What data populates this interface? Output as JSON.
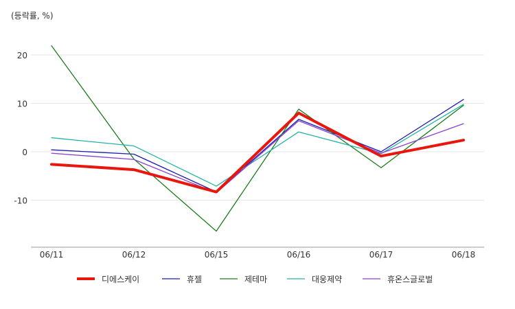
{
  "chart_data": {
    "type": "line",
    "unit_label": "(등락률, %)",
    "categories": [
      "06/11",
      "06/12",
      "06/15",
      "06/16",
      "06/17",
      "06/18"
    ],
    "ylim": [
      -20,
      25
    ],
    "yticks": [
      -10,
      0,
      10,
      20
    ],
    "grid": true,
    "legend_position": "bottom",
    "series": [
      {
        "name": "디에스케이",
        "color": "#e8160c",
        "values": [
          -2.6,
          -3.7,
          -8.3,
          8.0,
          -0.9,
          2.4
        ]
      },
      {
        "name": "휴젤",
        "color": "#1d1ab0",
        "values": [
          0.4,
          -0.5,
          -8.3,
          6.7,
          0.0,
          10.8
        ]
      },
      {
        "name": "제테마",
        "color": "#1a7d1a",
        "values": [
          21.9,
          -1.5,
          -16.4,
          8.8,
          -3.3,
          9.6
        ]
      },
      {
        "name": "대웅제약",
        "color": "#22b3a8",
        "values": [
          2.9,
          1.2,
          -7.1,
          4.1,
          -0.4,
          9.8
        ]
      },
      {
        "name": "휴온스글로벌",
        "color": "#8a3fcf",
        "values": [
          -0.3,
          -1.6,
          -8.5,
          6.4,
          -0.3,
          5.8
        ]
      }
    ]
  }
}
